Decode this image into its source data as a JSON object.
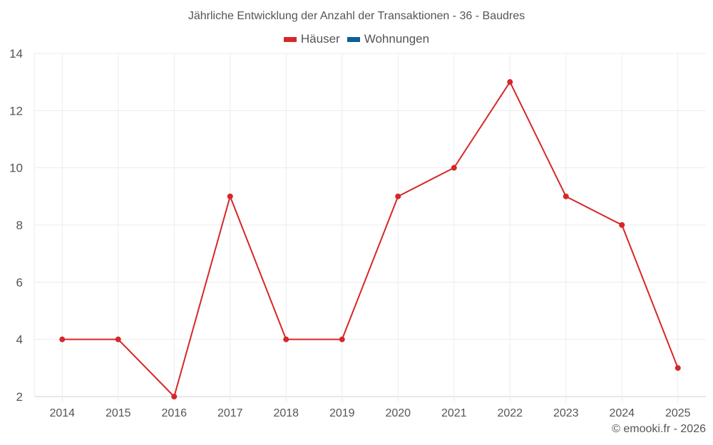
{
  "chart_data": {
    "type": "line",
    "title": "Jährliche Entwicklung der Anzahl der Transaktionen - 36 - Baudres",
    "categories": [
      "2014",
      "2015",
      "2016",
      "2017",
      "2018",
      "2019",
      "2020",
      "2021",
      "2022",
      "2023",
      "2024",
      "2025"
    ],
    "series": [
      {
        "name": "Häuser",
        "color": "#d62728",
        "values": [
          4,
          4,
          2,
          9,
          4,
          4,
          9,
          10,
          13,
          9,
          8,
          3
        ]
      },
      {
        "name": "Wohnungen",
        "color": "#0e5f9c",
        "values": []
      }
    ],
    "xlabel": "",
    "ylabel": "",
    "ylim": [
      2,
      14
    ],
    "yticks": [
      2,
      4,
      6,
      8,
      10,
      12,
      14
    ],
    "grid": true,
    "legend_position": "top"
  },
  "legend": [
    {
      "label": "Häuser",
      "color": "#d62728"
    },
    {
      "label": "Wohnungen",
      "color": "#0e5f9c"
    }
  ],
  "credit": "© emooki.fr - 2026"
}
